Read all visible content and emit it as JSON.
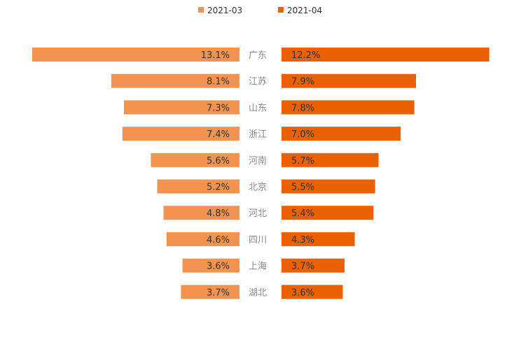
{
  "chart_data": {
    "type": "bar",
    "orientation": "horizontal-butterfly",
    "title": "",
    "xlabel": "",
    "ylabel": "",
    "legend_position": "top-center",
    "categories": [
      "广东",
      "江苏",
      "山东",
      "浙江",
      "河南",
      "北京",
      "河北",
      "四川",
      "上海",
      "湖北"
    ],
    "series": [
      {
        "name": "2021-03",
        "color": "#f2934f",
        "side": "left",
        "values": [
          13.1,
          8.1,
          7.3,
          7.4,
          5.6,
          5.2,
          4.8,
          4.6,
          3.6,
          3.7
        ],
        "labels": [
          "13.1%",
          "8.1%",
          "7.3%",
          "7.4%",
          "5.6%",
          "5.2%",
          "4.8%",
          "4.6%",
          "3.6%",
          "3.7%"
        ]
      },
      {
        "name": "2021-04",
        "color": "#eb6100",
        "side": "right",
        "values": [
          12.2,
          7.9,
          7.8,
          7.0,
          5.7,
          5.5,
          5.4,
          4.3,
          3.7,
          3.6
        ],
        "labels": [
          "12.2%",
          "7.9%",
          "7.8%",
          "7.0%",
          "5.7%",
          "5.5%",
          "5.4%",
          "4.3%",
          "3.7%",
          "3.6%"
        ]
      }
    ],
    "colors": {
      "label_text": "#333333",
      "category_text": "#8a8a8a",
      "legend_text": "#333333"
    }
  }
}
